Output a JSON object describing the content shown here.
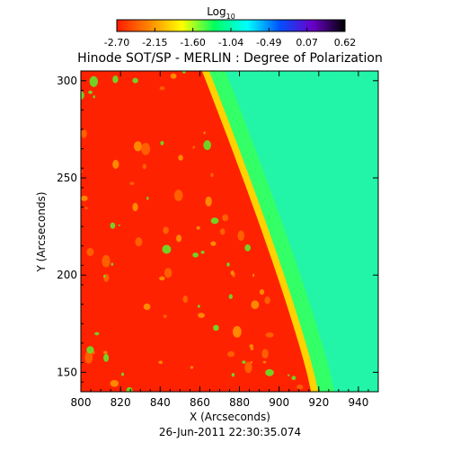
{
  "chart_data": {
    "type": "heatmap",
    "title": "Hinode SOT/SP - MERLIN : Degree of Polarization",
    "xlabel": "X (Arcseconds)",
    "ylabel": "Y (Arcseconds)",
    "footer": "26-Jun-2011 22:30:35.074",
    "xlim": [
      800,
      950
    ],
    "ylim": [
      140,
      305
    ],
    "x_ticks": [
      "800",
      "820",
      "840",
      "860",
      "880",
      "900",
      "920",
      "940"
    ],
    "y_ticks": [
      "150",
      "200",
      "250",
      "300"
    ],
    "colorbar": {
      "label_main": "Log",
      "label_sub": "10",
      "ticks": [
        "-2.70",
        "-2.15",
        "-1.60",
        "-1.04",
        "-0.49",
        "0.07",
        "0.62"
      ],
      "range": [
        -2.7,
        0.62
      ],
      "stops": [
        "#ff1a00",
        "#ff8800",
        "#ffff00",
        "#00ff60",
        "#00ffff",
        "#0050ff",
        "#6a00c8",
        "#000000"
      ]
    },
    "regions": {
      "disk_value": -2.6,
      "limb_value": -1.1,
      "offlimb_value": -0.95,
      "limb_x_at_ymax": 862,
      "limb_x_at_ymin": 917
    },
    "colors": {
      "disk": "#ff2200",
      "limb_bright": "#ffd200",
      "limb_green": "#33ff66",
      "offlimb": "#22f5a8",
      "plage": "#5cf02a"
    }
  }
}
